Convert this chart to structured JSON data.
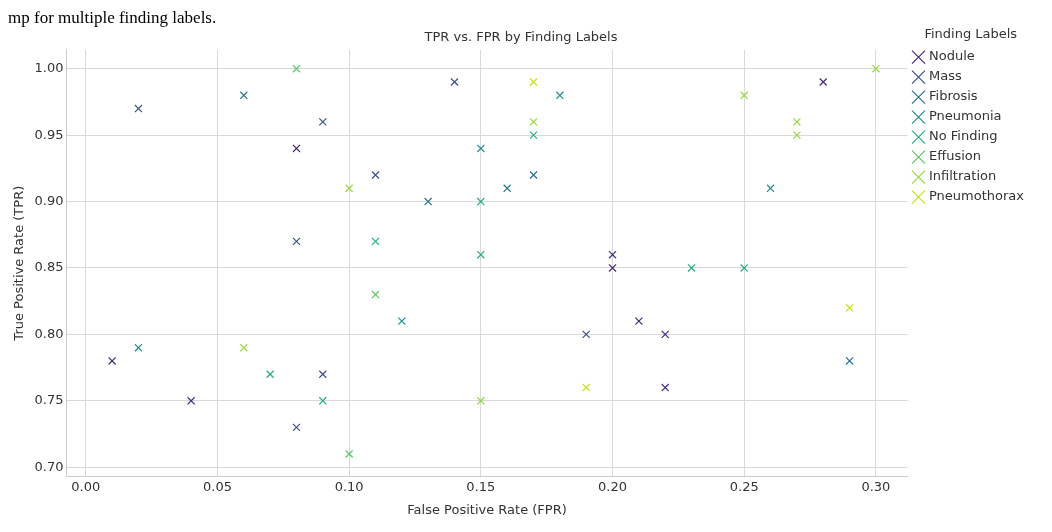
{
  "chart_data": {
    "type": "scatter",
    "title": "TPR vs. FPR by Finding Labels",
    "xlabel": "False Positive Rate (FPR)",
    "ylabel": "True Positive Rate (TPR)",
    "legend_title": "Finding Labels",
    "annotations": [
      "mp for multiple finding labels."
    ],
    "series": [
      {
        "name": "Nodule",
        "color": "#472c7a",
        "x": [
          0.08,
          0.28,
          0.2,
          0.2,
          0.21,
          0.22,
          0.22,
          0.01,
          0.04
        ],
        "values": [
          0.94,
          0.99,
          0.86,
          0.85,
          0.81,
          0.8,
          0.76,
          0.78,
          0.75
        ]
      },
      {
        "name": "Mass",
        "color": "#3b518b",
        "x": [
          0.02,
          0.09,
          0.11,
          0.08,
          0.14,
          0.19,
          0.09,
          0.08
        ],
        "values": [
          0.97,
          0.96,
          0.92,
          0.87,
          0.99,
          0.8,
          0.77,
          0.73
        ]
      },
      {
        "name": "Fibrosis",
        "color": "#2c718e",
        "x": [
          0.06,
          0.17,
          0.16,
          0.13,
          0.29
        ],
        "values": [
          0.98,
          0.92,
          0.91,
          0.9,
          0.78
        ]
      },
      {
        "name": "Pneumonia",
        "color": "#21908d",
        "x": [
          0.18,
          0.15,
          0.26,
          0.12,
          0.02
        ],
        "values": [
          0.98,
          0.94,
          0.91,
          0.81,
          0.79
        ]
      },
      {
        "name": "No Finding",
        "color": "#27ad81",
        "x": [
          0.11,
          0.17,
          0.15,
          0.15,
          0.23,
          0.25,
          0.07,
          0.09
        ],
        "values": [
          0.87,
          0.95,
          0.9,
          0.86,
          0.85,
          0.85,
          0.77,
          0.75
        ]
      },
      {
        "name": "Effusion",
        "color": "#5cc863",
        "x": [
          0.08,
          0.11,
          0.1
        ],
        "values": [
          1.0,
          0.83,
          0.71
        ]
      },
      {
        "name": "Infiltration",
        "color": "#95d840",
        "x": [
          0.1,
          0.17,
          0.25,
          0.3,
          0.27,
          0.27,
          0.15,
          0.06
        ],
        "values": [
          0.91,
          0.96,
          0.98,
          1.0,
          0.96,
          0.95,
          0.75,
          0.79
        ]
      },
      {
        "name": "Pneumothorax",
        "color": "#c8e020",
        "x": [
          0.17,
          0.29,
          0.19
        ],
        "values": [
          0.99,
          0.82,
          0.76
        ]
      }
    ],
    "xlim": [
      -0.0073,
      0.312
    ],
    "ylim": [
      0.6928,
      1.0144
    ],
    "xticks": [
      {
        "value": 0,
        "label": "0.00"
      },
      0.05,
      {
        "value": 0.1,
        "label": "0.10"
      },
      0.15,
      {
        "value": 0.2,
        "label": "0.20"
      },
      0.25,
      {
        "value": 0.3,
        "label": "0.30"
      }
    ],
    "yticks": [
      {
        "value": 0.7,
        "label": "0.70"
      },
      0.75,
      {
        "value": 0.8,
        "label": "0.80"
      },
      0.85,
      {
        "value": 0.9,
        "label": "0.90"
      },
      0.95,
      {
        "value": 1,
        "label": "1.00"
      }
    ],
    "grid": true,
    "legend": "top right",
    "marker": "cross"
  }
}
